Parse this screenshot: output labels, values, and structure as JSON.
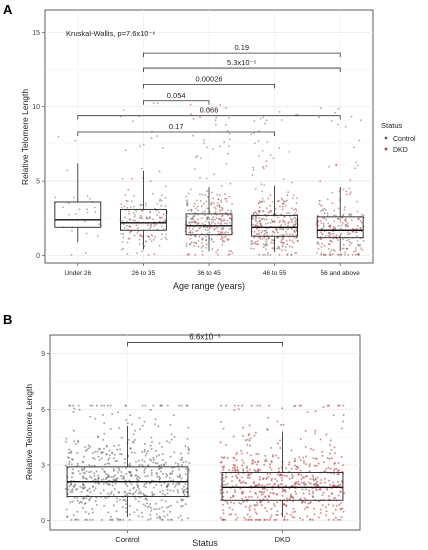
{
  "figure": {
    "panel_a_label": "A",
    "panel_b_label": "B"
  },
  "legend": {
    "title": "Status",
    "items": [
      {
        "label": "Control",
        "color": "#5f5f5f"
      },
      {
        "label": "DKD",
        "color": "#b03a3a"
      }
    ]
  },
  "chart_data": [
    {
      "type": "box",
      "panel": "A",
      "xlabel": "Age range (years)",
      "ylabel": "Relative Telomere Length",
      "ylim": [
        -0.5,
        16.5
      ],
      "yticks": [
        0,
        5,
        10,
        15
      ],
      "grid": true,
      "legend_position": "right",
      "annotation": "Kruskal-Wallis, p=7.6x10⁻⁶",
      "categories": [
        "Under 26",
        "26 to 35",
        "36 to 45",
        "46 to 55",
        "56 and above"
      ],
      "boxes": [
        {
          "category": "Under 26",
          "min": 0.9,
          "q1": 1.9,
          "median": 2.4,
          "q3": 3.6,
          "max": 6.2
        },
        {
          "category": "26 to 35",
          "min": 0.4,
          "q1": 1.7,
          "median": 2.2,
          "q3": 3.1,
          "max": 5.7
        },
        {
          "category": "36 to 45",
          "min": 0.3,
          "q1": 1.4,
          "median": 2.0,
          "q3": 2.8,
          "max": 4.6
        },
        {
          "category": "46 to 55",
          "min": 0.3,
          "q1": 1.3,
          "median": 1.9,
          "q3": 2.7,
          "max": 4.7
        },
        {
          "category": "56 and above",
          "min": 0.3,
          "q1": 1.2,
          "median": 1.7,
          "q3": 2.6,
          "max": 4.6
        }
      ],
      "point_counts": [
        28,
        170,
        300,
        330,
        240
      ],
      "comparisons": [
        {
          "from": "26 to 35",
          "to": "56 and above",
          "y": 13.6,
          "label": "0.19"
        },
        {
          "from": "26 to 35",
          "to": "56 and above",
          "y": 12.6,
          "label": "5.3x10⁻⁵"
        },
        {
          "from": "26 to 35",
          "to": "46 to 55",
          "y": 11.5,
          "label": "0.00026"
        },
        {
          "from": "26 to 35",
          "to": "36 to 45",
          "y": 10.4,
          "label": "0.054"
        },
        {
          "from": "Under 26",
          "to": "56 and above",
          "y": 9.4,
          "label": "0.066"
        },
        {
          "from": "Under 26",
          "to": "46 to 55",
          "y": 8.3,
          "label": "0.17"
        }
      ]
    },
    {
      "type": "box",
      "panel": "B",
      "xlabel": "Status",
      "ylabel": "Relative Telomere Length",
      "ylim": [
        -0.5,
        10.0
      ],
      "yticks": [
        0,
        3,
        6,
        9
      ],
      "grid": true,
      "categories": [
        "Control",
        "DKD"
      ],
      "boxes": [
        {
          "category": "Control",
          "min": 0.2,
          "q1": 1.3,
          "median": 2.1,
          "q3": 2.9,
          "max": 5.1,
          "color": "#5f5f5f"
        },
        {
          "category": "DKD",
          "min": 0.2,
          "q1": 1.1,
          "median": 1.8,
          "q3": 2.6,
          "max": 4.8,
          "color": "#b03a3a"
        }
      ],
      "point_counts": [
        620,
        620
      ],
      "comparisons": [
        {
          "from": "Control",
          "to": "DKD",
          "y": 9.6,
          "label": "6.6x10⁻⁵"
        }
      ]
    }
  ]
}
